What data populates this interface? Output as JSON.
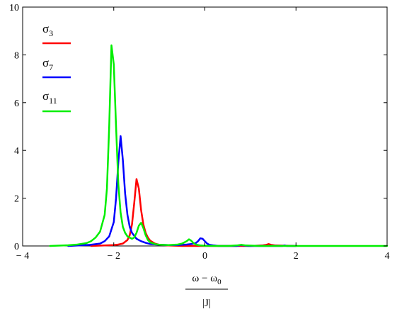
{
  "chart_data": {
    "type": "line",
    "xlim": [
      -4,
      4
    ],
    "ylim": [
      0,
      10
    ],
    "x_ticks": [
      "− 4",
      "− 2",
      "0",
      "2",
      "4"
    ],
    "y_ticks": [
      "0",
      "2",
      "4",
      "6",
      "8",
      "10"
    ],
    "grid": false,
    "legend_position": "top-left",
    "xlabel": {
      "numerator": "ω − ω",
      "numerator_sub": "0",
      "denominator": "|J|"
    },
    "series": [
      {
        "name": "σ",
        "name_sub": "3",
        "color": "#ff0000",
        "x": [
          -2.5,
          -2.2,
          -2.0,
          -1.9,
          -1.8,
          -1.7,
          -1.65,
          -1.6,
          -1.55,
          -1.5,
          -1.45,
          -1.4,
          -1.35,
          -1.3,
          -1.25,
          -1.2,
          -1.1,
          -1.0,
          -0.8,
          -0.5,
          0.0,
          0.5,
          1.0,
          1.25,
          1.35,
          1.4,
          1.45,
          1.55,
          2.0
        ],
        "y": [
          0.0,
          0.02,
          0.04,
          0.06,
          0.1,
          0.25,
          0.45,
          0.9,
          1.8,
          2.8,
          2.4,
          1.5,
          0.9,
          0.55,
          0.35,
          0.22,
          0.1,
          0.05,
          0.02,
          0.0,
          0.0,
          0.0,
          0.0,
          0.02,
          0.05,
          0.08,
          0.05,
          0.02,
          0.0
        ]
      },
      {
        "name": "σ",
        "name_sub": "7",
        "color": "#0000ff",
        "x": [
          -3.0,
          -2.5,
          -2.3,
          -2.2,
          -2.1,
          -2.0,
          -1.95,
          -1.9,
          -1.85,
          -1.8,
          -1.75,
          -1.7,
          -1.65,
          -1.6,
          -1.5,
          -1.4,
          -1.3,
          -1.2,
          -1.0,
          -0.8,
          -0.6,
          -0.4,
          -0.3,
          -0.2,
          -0.15,
          -0.1,
          -0.05,
          0.0,
          0.05,
          0.1,
          0.2,
          0.3,
          0.5,
          0.7,
          0.75,
          0.8,
          0.85,
          0.95,
          1.2,
          1.5,
          1.7,
          1.75,
          1.8,
          2.0
        ],
        "y": [
          0.0,
          0.05,
          0.1,
          0.2,
          0.4,
          1.0,
          2.0,
          3.5,
          4.6,
          3.6,
          2.2,
          1.3,
          0.8,
          0.55,
          0.3,
          0.2,
          0.13,
          0.08,
          0.05,
          0.04,
          0.04,
          0.06,
          0.08,
          0.12,
          0.2,
          0.32,
          0.3,
          0.2,
          0.1,
          0.05,
          0.02,
          0.0,
          0.0,
          0.0,
          0.02,
          0.04,
          0.02,
          0.0,
          0.0,
          0.0,
          0.0,
          0.02,
          0.0,
          0.0
        ]
      },
      {
        "name": "σ",
        "name_sub": "11",
        "color": "#00ee00",
        "x": [
          -3.4,
          -3.0,
          -2.8,
          -2.6,
          -2.5,
          -2.4,
          -2.3,
          -2.2,
          -2.15,
          -2.1,
          -2.05,
          -2.0,
          -1.95,
          -1.9,
          -1.85,
          -1.8,
          -1.75,
          -1.7,
          -1.6,
          -1.55,
          -1.5,
          -1.45,
          -1.4,
          -1.35,
          -1.3,
          -1.25,
          -1.2,
          -1.1,
          -1.0,
          -0.8,
          -0.6,
          -0.5,
          -0.4,
          -0.35,
          -0.3,
          -0.25,
          -0.2,
          -0.1,
          0.0,
          0.2,
          0.5,
          0.7,
          0.8,
          0.9,
          1.2,
          1.5,
          2.0,
          4.0
        ],
        "y": [
          0.0,
          0.03,
          0.06,
          0.12,
          0.2,
          0.35,
          0.6,
          1.3,
          2.4,
          5.0,
          8.4,
          7.6,
          5.0,
          2.6,
          1.4,
          0.8,
          0.55,
          0.4,
          0.3,
          0.35,
          0.55,
          0.85,
          0.97,
          0.75,
          0.45,
          0.25,
          0.15,
          0.08,
          0.05,
          0.04,
          0.06,
          0.1,
          0.2,
          0.28,
          0.22,
          0.12,
          0.06,
          0.02,
          0.01,
          0.0,
          0.0,
          0.02,
          0.05,
          0.02,
          0.0,
          0.0,
          0.0,
          0.0
        ]
      }
    ]
  }
}
